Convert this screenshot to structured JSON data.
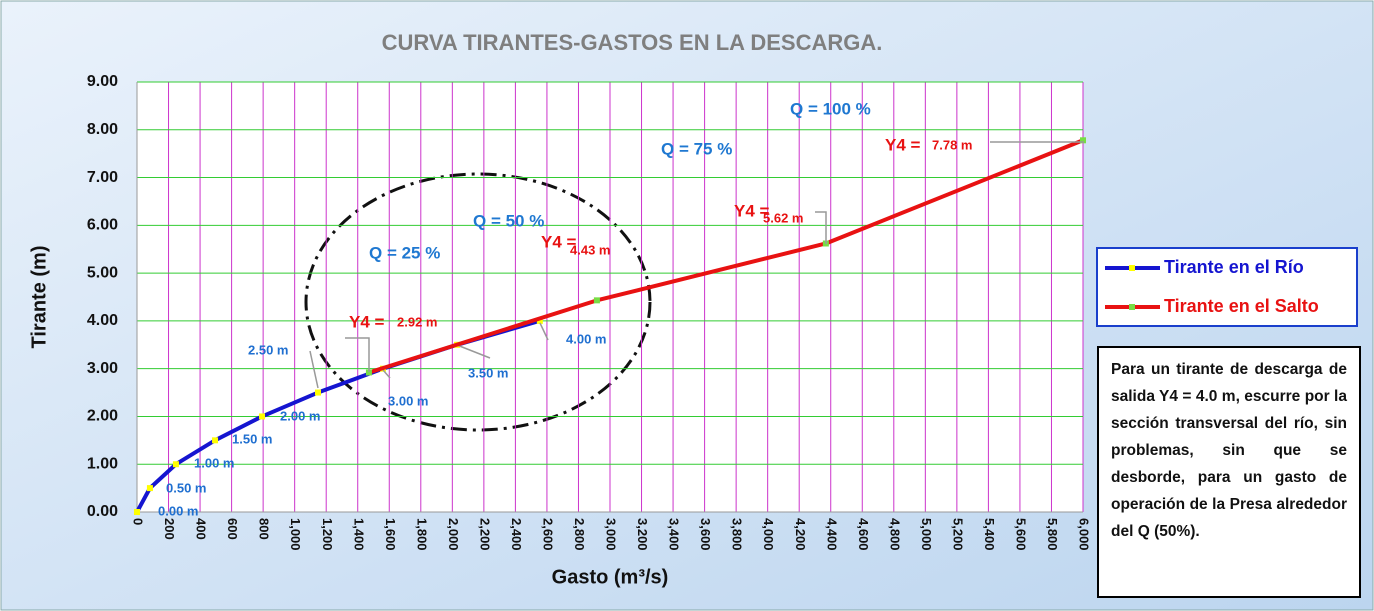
{
  "chart_data": {
    "type": "line",
    "title": "CURVA TIRANTES-GASTOS EN LA DESCARGA.",
    "x_label": "Gasto (m³/s)",
    "y_label": "Tirante (m)",
    "xlim": [
      0,
      6000
    ],
    "ylim": [
      0,
      9
    ],
    "xticks": [
      0,
      200,
      400,
      600,
      800,
      {
        "value": 1000,
        "label": "1,000"
      },
      {
        "value": 1200,
        "label": "1,200"
      },
      {
        "value": 1400,
        "label": "1,400"
      },
      {
        "value": 1600,
        "label": "1,600"
      },
      {
        "value": 1800,
        "label": "1,800"
      },
      {
        "value": 2000,
        "label": "2,000"
      },
      {
        "value": 2200,
        "label": "2,200"
      },
      {
        "value": 2400,
        "label": "2,400"
      },
      {
        "value": 2600,
        "label": "2,600"
      },
      {
        "value": 2800,
        "label": "2,800"
      },
      {
        "value": 3000,
        "label": "3,000"
      },
      {
        "value": 3200,
        "label": "3,200"
      },
      {
        "value": 3400,
        "label": "3,400"
      },
      {
        "value": 3600,
        "label": "3,600"
      },
      {
        "value": 3800,
        "label": "3,800"
      },
      {
        "value": 4000,
        "label": "4,000"
      },
      {
        "value": 4200,
        "label": "4,200"
      },
      {
        "value": 4400,
        "label": "4,400"
      },
      {
        "value": 4600,
        "label": "4,600"
      },
      {
        "value": 4800,
        "label": "4,800"
      },
      {
        "value": 5000,
        "label": "5,000"
      },
      {
        "value": 5200,
        "label": "5,200"
      },
      {
        "value": 5400,
        "label": "5,400"
      },
      {
        "value": 5600,
        "label": "5,600"
      },
      {
        "value": 5800,
        "label": "5,800"
      },
      {
        "value": 6000,
        "label": "6,000"
      }
    ],
    "yticks": [
      {
        "value": 0,
        "label": "0.00"
      },
      {
        "value": 1,
        "label": "1.00"
      },
      {
        "value": 2,
        "label": "2.00"
      },
      {
        "value": 3,
        "label": "3.00"
      },
      {
        "value": 4,
        "label": "4.00"
      },
      {
        "value": 5,
        "label": "5.00"
      },
      {
        "value": 6,
        "label": "6.00"
      },
      {
        "value": 7,
        "label": "7.00"
      },
      {
        "value": 8,
        "label": "8.00"
      },
      {
        "value": 9,
        "label": "9.00"
      }
    ],
    "grid": true,
    "grid_color_x": "#cc33cc",
    "grid_color_y": "#33cc33",
    "legend": "right",
    "series": [
      {
        "name": "Tirante en el Río",
        "color": "#1515d0",
        "marker_color": "#ffff00",
        "x": [
          0,
          82,
          247,
          495,
          793,
          1148,
          1560,
          2030,
          2555
        ],
        "values": [
          0,
          0.5,
          1.0,
          1.5,
          2.0,
          2.5,
          3.0,
          3.5,
          4.0
        ],
        "value_labels": [
          "0.00 m",
          "0.50 m",
          "1.00 m",
          "1.50 m",
          "2.00 m",
          "2.50 m",
          "3.00 m",
          "3.50 m",
          "4.00 m"
        ]
      },
      {
        "name": "Tirante en el Salto",
        "color": "#e81212",
        "marker_color": "#77dd44",
        "x": [
          1471,
          2917,
          4369,
          6000
        ],
        "values": [
          2.92,
          4.43,
          5.62,
          7.78
        ],
        "value_labels": [
          "2.92 m",
          "4.43 m",
          "5.62 m",
          "7.78 m"
        ]
      }
    ],
    "annotations": [
      "Q = 25 %",
      "Q = 50 %",
      "Q = 75 %",
      "Q = 100 %",
      "Y4 =",
      "Y4 =",
      "Y4 =",
      "Y4 ="
    ],
    "note": "Para un tirante de descarga de salida Y4 = 4.0 m, escurre por la sección transversal del río, sin problemas, sin que se desborde, para un gasto de operación de la Presa alrededor del Q (50%)."
  }
}
